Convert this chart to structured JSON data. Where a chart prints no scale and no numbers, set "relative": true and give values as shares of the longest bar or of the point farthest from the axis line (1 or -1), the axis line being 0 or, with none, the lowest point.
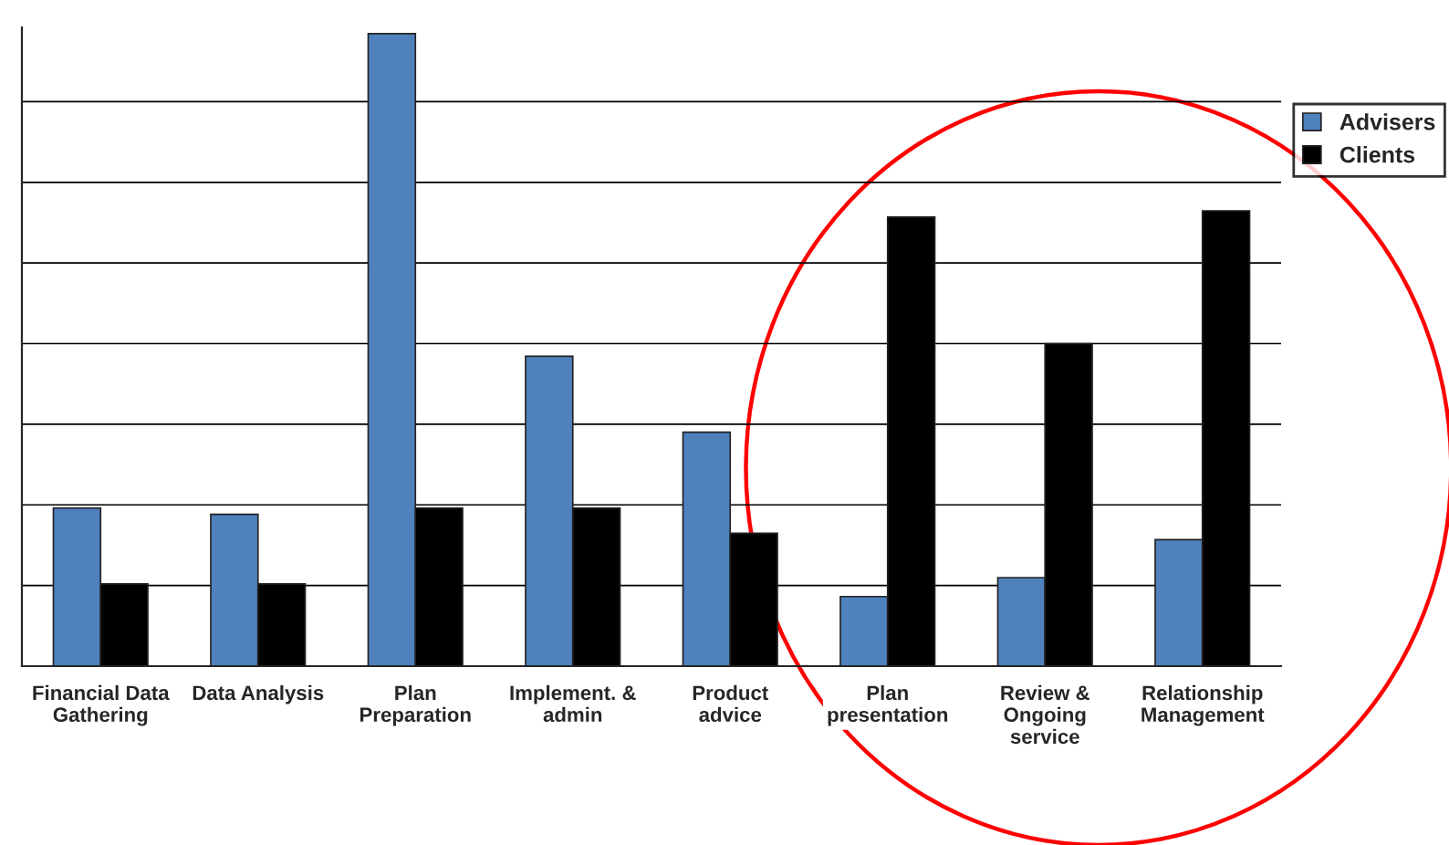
{
  "chart_data": {
    "type": "bar",
    "relative": true,
    "categories": [
      "Financial Data\nGathering",
      "Data Analysis",
      "Plan\nPreparation",
      "Implement. &\nadmin",
      "Product\nadvice",
      "Plan\npresentation",
      "Review &\nOngoing\nservice",
      "Relationship\nManagement"
    ],
    "series": [
      {
        "name": "Advisers",
        "color": "#4f81bd",
        "values": [
          0.25,
          0.24,
          1.0,
          0.49,
          0.37,
          0.11,
          0.14,
          0.2
        ]
      },
      {
        "name": "Clients",
        "color": "#000000",
        "values": [
          0.13,
          0.13,
          0.25,
          0.25,
          0.21,
          0.71,
          0.51,
          0.72
        ]
      }
    ],
    "grid": "y",
    "legend": "top right"
  }
}
